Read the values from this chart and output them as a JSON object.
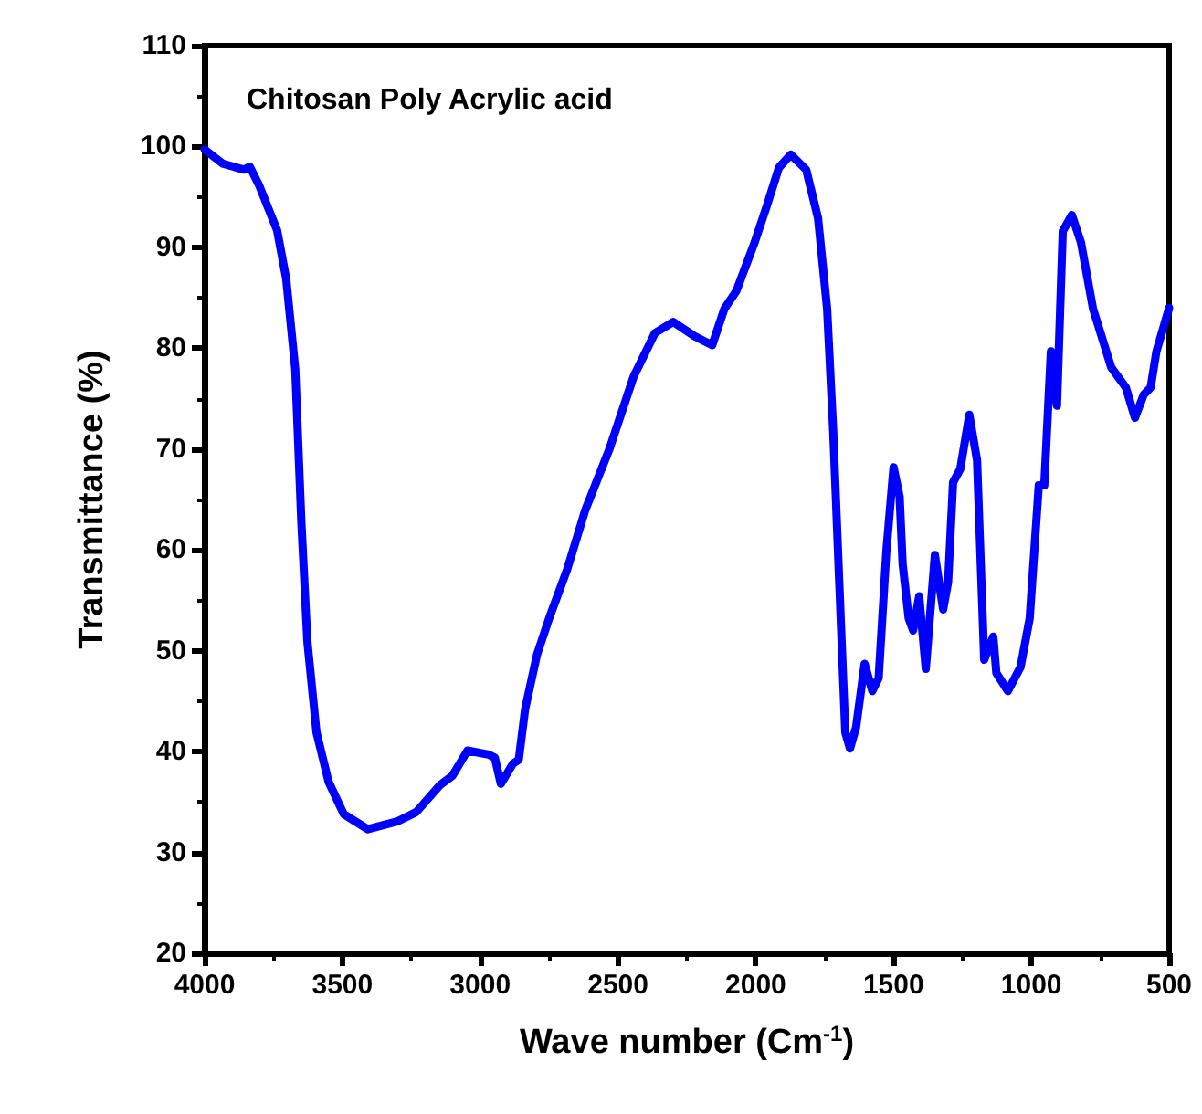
{
  "chart_data": {
    "type": "line",
    "title": "Chitosan Poly Acrylic acid",
    "xlabel": "Wave number (Cm$^{-1}$)",
    "ylabel": "Transmittance (%)",
    "xlim": [
      4000,
      500
    ],
    "xticks": [
      4000,
      3500,
      3000,
      2500,
      2000,
      1500,
      1000,
      500
    ],
    "ylim": [
      20,
      110
    ],
    "yticks": [
      20,
      30,
      40,
      50,
      60,
      70,
      80,
      90,
      100,
      110
    ],
    "grid": false,
    "marker": "none",
    "line_style": "solid",
    "series": [
      {
        "color": "#0000ff",
        "x": [
          4000,
          3934,
          3857,
          3836,
          3803,
          3737,
          3704,
          3671,
          3649,
          3627,
          3594,
          3550,
          3495,
          3408,
          3298,
          3232,
          3145,
          3101,
          3046,
          2969,
          2947,
          2925,
          2881,
          2860,
          2837,
          2794,
          2750,
          2684,
          2618,
          2531,
          2443,
          2366,
          2300,
          2223,
          2158,
          2114,
          2070,
          2004,
          1960,
          1916,
          1873,
          1817,
          1774,
          1741,
          1719,
          1697,
          1675,
          1658,
          1636,
          1605,
          1577,
          1554,
          1526,
          1500,
          1478,
          1467,
          1445,
          1429,
          1407,
          1383,
          1350,
          1320,
          1302,
          1284,
          1258,
          1225,
          1197,
          1171,
          1138,
          1127,
          1085,
          1039,
          1006,
          973,
          953,
          929,
          907,
          886,
          853,
          820,
          776,
          710,
          657,
          624,
          592,
          567,
          546,
          500
        ],
        "values": [
          99.7,
          98.3,
          97.7,
          98,
          96.2,
          91.7,
          86.9,
          77.9,
          62.8,
          50.9,
          41.9,
          37,
          33.8,
          32.3,
          33.1,
          34,
          36.7,
          37.6,
          40.1,
          39.7,
          39.4,
          36.8,
          38.8,
          39.2,
          44.2,
          49.6,
          53.2,
          58.1,
          64,
          70,
          77.2,
          81.5,
          82.6,
          81.2,
          80.3,
          83.9,
          85.7,
          90.5,
          94.1,
          97.9,
          99.2,
          97.7,
          92.9,
          83.9,
          71.8,
          56.8,
          41.9,
          40.3,
          42.4,
          48.7,
          46,
          47.3,
          59.9,
          68.2,
          65.3,
          58.6,
          53.2,
          52,
          55.4,
          48.2,
          59.5,
          54.1,
          56.8,
          66.7,
          68,
          73.4,
          68.9,
          49.1,
          51.4,
          47.8,
          46,
          48.4,
          53.2,
          66.4,
          66.4,
          79.7,
          74.3,
          91.6,
          93.2,
          90.5,
          83.9,
          78.1,
          76.1,
          73.1,
          75.4,
          76.1,
          79.7,
          84
        ]
      }
    ]
  }
}
